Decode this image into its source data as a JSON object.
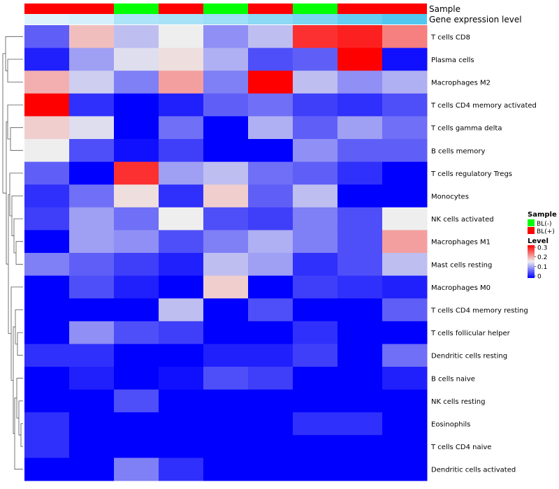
{
  "chart_data": {
    "type": "heatmap",
    "title": "",
    "annotation_tracks": [
      {
        "label": "Sample"
      },
      {
        "label": "Gene expression level"
      }
    ],
    "sample_groups": [
      "BL(+)",
      "BL(+)",
      "BL(-)",
      "BL(+)",
      "BL(-)",
      "BL(+)",
      "BL(-)",
      "BL(+)",
      "BL(+)"
    ],
    "gene_expression_track": [
      0.05,
      0.08,
      0.2,
      0.22,
      0.25,
      0.3,
      0.35,
      0.42,
      0.48
    ],
    "rows": [
      "T cells CD8",
      "Plasma cells",
      "Macrophages M2",
      "T cells CD4 memory activated",
      "T cells gamma delta",
      "B cells memory",
      "T cells regulatory  Tregs",
      "Monocytes",
      "NK cells activated",
      "Macrophages M1",
      "Mast cells resting",
      "Macrophages M0",
      "T cells CD4 memory resting",
      "T cells follicular helper",
      "Dendritic cells resting",
      "B cells naive",
      "NK cells resting",
      "Eosinophils",
      "T cells CD4 naive",
      "Dendritic cells activated"
    ],
    "values": [
      [
        0.06,
        0.18,
        0.12,
        0.15,
        0.09,
        0.12,
        0.27,
        0.28,
        0.22
      ],
      [
        0.02,
        0.1,
        0.14,
        0.16,
        0.11,
        0.05,
        0.06,
        0.3,
        0.01
      ],
      [
        0.19,
        0.13,
        0.08,
        0.2,
        0.08,
        0.3,
        0.12,
        0.09,
        0.11
      ],
      [
        0.3,
        0.03,
        0.0,
        0.02,
        0.06,
        0.07,
        0.04,
        0.03,
        0.05
      ],
      [
        0.17,
        0.14,
        0.0,
        0.07,
        0.0,
        0.11,
        0.06,
        0.1,
        0.07
      ],
      [
        0.15,
        0.05,
        0.01,
        0.04,
        0.0,
        0.0,
        0.09,
        0.06,
        0.06
      ],
      [
        0.06,
        0.0,
        0.27,
        0.1,
        0.12,
        0.07,
        0.06,
        0.03,
        0.0
      ],
      [
        0.03,
        0.07,
        0.16,
        0.03,
        0.17,
        0.06,
        0.12,
        0.0,
        0.0
      ],
      [
        0.04,
        0.1,
        0.07,
        0.15,
        0.05,
        0.04,
        0.08,
        0.05,
        0.15
      ],
      [
        0.0,
        0.1,
        0.09,
        0.05,
        0.08,
        0.11,
        0.08,
        0.05,
        0.2
      ],
      [
        0.08,
        0.06,
        0.04,
        0.02,
        0.12,
        0.1,
        0.03,
        0.05,
        0.12
      ],
      [
        0.0,
        0.05,
        0.02,
        0.0,
        0.17,
        0.0,
        0.04,
        0.03,
        0.02
      ],
      [
        0.0,
        0.0,
        0.0,
        0.12,
        0.0,
        0.05,
        0.0,
        0.0,
        0.06
      ],
      [
        0.0,
        0.09,
        0.05,
        0.04,
        0.0,
        0.0,
        0.03,
        0.0,
        0.0
      ],
      [
        0.03,
        0.03,
        0.0,
        0.0,
        0.02,
        0.02,
        0.04,
        0.0,
        0.07
      ],
      [
        0.0,
        0.02,
        0.0,
        0.01,
        0.05,
        0.04,
        0.0,
        0.0,
        0.02
      ],
      [
        0.0,
        0.0,
        0.05,
        0.0,
        0.0,
        0.0,
        0.0,
        0.0,
        0.0
      ],
      [
        0.03,
        0.0,
        0.0,
        0.0,
        0.0,
        0.0,
        0.03,
        0.03,
        0.0
      ],
      [
        0.03,
        0.0,
        0.0,
        0.0,
        0.0,
        0.0,
        0.0,
        0.0,
        0.0
      ],
      [
        0.0,
        0.0,
        0.08,
        0.03,
        0.0,
        0.0,
        0.0,
        0.0,
        0.0
      ]
    ],
    "color_scale": {
      "min": 0,
      "mid": 0.15,
      "max": 0.3,
      "low_color": "#0000ff",
      "mid_color": "#eeeeee",
      "high_color": "#ff0000"
    },
    "legend": {
      "sample": {
        "title": "Sample",
        "items": [
          {
            "label": "BL(-)",
            "color": "#00ff00"
          },
          {
            "label": "BL(+)",
            "color": "#ff0000"
          }
        ]
      },
      "level": {
        "title": "Level",
        "ticks": [
          "0.3",
          "0.2",
          "0.1",
          "0"
        ]
      },
      "placement": "right"
    },
    "row_dendrogram": true
  }
}
